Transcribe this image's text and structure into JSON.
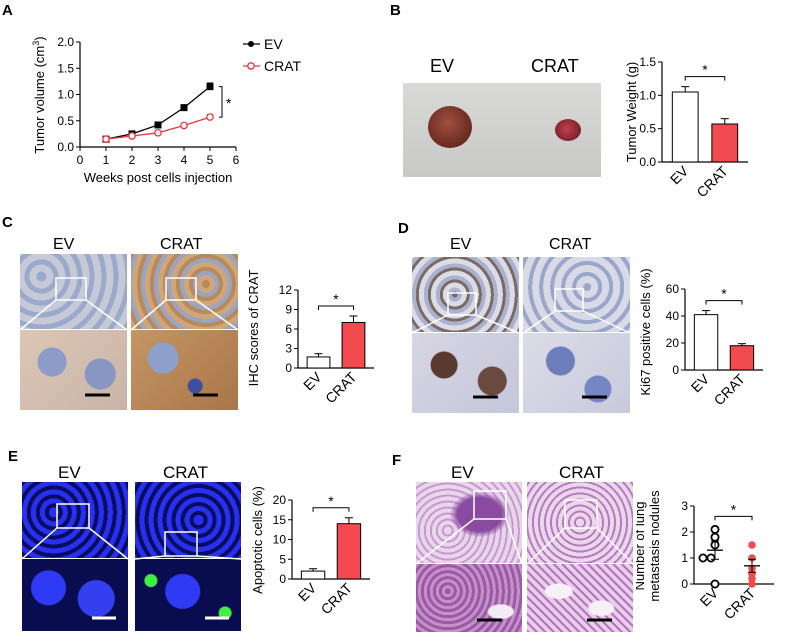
{
  "panels": {
    "A": {
      "label": "A"
    },
    "B": {
      "label": "B",
      "photo_labels": [
        "EV",
        "CRAT"
      ]
    },
    "C": {
      "label": "C",
      "image_labels": [
        "EV",
        "CRAT"
      ]
    },
    "D": {
      "label": "D",
      "image_labels": [
        "EV",
        "CRAT"
      ]
    },
    "E": {
      "label": "E",
      "image_labels": [
        "EV",
        "CRAT"
      ]
    },
    "F": {
      "label": "F",
      "image_labels": [
        "EV",
        "CRAT"
      ]
    }
  },
  "colors": {
    "ev": "#000000",
    "crat": "#e8363e",
    "crat_fill": "#f24a4e",
    "dapi": "#1d24e8",
    "tunel": "#22e022"
  },
  "chart_data": [
    {
      "id": "A",
      "type": "line",
      "xlabel": "Weeks post cells injection",
      "ylabel": "Tumor volume (cm3)",
      "ylabel_main": "Tumor volume (cm",
      "ylabel_sup": "3",
      "ylabel_end": ")",
      "xlim": [
        0,
        6
      ],
      "ylim": [
        0,
        2.0
      ],
      "xticks": [
        "0",
        "1",
        "2",
        "3",
        "4",
        "5",
        "6"
      ],
      "yticks": [
        "0.0",
        "0.5",
        "1.0",
        "1.5",
        "2.0"
      ],
      "series": [
        {
          "name": "EV",
          "x": [
            1,
            2,
            3,
            4,
            5
          ],
          "y": [
            0.15,
            0.25,
            0.42,
            0.75,
            1.15
          ],
          "err": [
            0.03,
            0.03,
            0.03,
            0.04,
            0.07
          ]
        },
        {
          "name": "CRAT",
          "x": [
            1,
            2,
            3,
            4,
            5
          ],
          "y": [
            0.15,
            0.21,
            0.27,
            0.41,
            0.57
          ],
          "err": [
            0.02,
            0.02,
            0.03,
            0.03,
            0.05
          ]
        }
      ],
      "annotation": "*",
      "legend": "top-right"
    },
    {
      "id": "B",
      "type": "bar",
      "ylabel": "Tumor Weight (g)",
      "categories": [
        "EV",
        "CRAT"
      ],
      "values": [
        1.05,
        0.57
      ],
      "err": [
        0.08,
        0.08
      ],
      "ylim": [
        0,
        1.5
      ],
      "yticks": [
        "0.0",
        "0.5",
        "1.0",
        "1.5"
      ],
      "annotation": "*"
    },
    {
      "id": "C",
      "type": "bar",
      "ylabel": "IHC scores of CRAT",
      "categories": [
        "EV",
        "CRAT"
      ],
      "values": [
        1.7,
        7.0
      ],
      "err": [
        0.5,
        1.0
      ],
      "ylim": [
        0,
        12
      ],
      "yticks": [
        "0",
        "3",
        "6",
        "9",
        "12"
      ],
      "annotation": "*"
    },
    {
      "id": "D",
      "type": "bar",
      "ylabel": "Ki67 positive cells (%)",
      "categories": [
        "EV",
        "CRAT"
      ],
      "values": [
        41,
        18
      ],
      "err": [
        3,
        1.5
      ],
      "ylim": [
        0,
        60
      ],
      "yticks": [
        "0",
        "20",
        "40",
        "60"
      ],
      "annotation": "*"
    },
    {
      "id": "E",
      "type": "bar",
      "ylabel": "Apoptotic cells (%)",
      "categories": [
        "EV",
        "CRAT"
      ],
      "values": [
        2,
        14
      ],
      "err": [
        0.6,
        1.5
      ],
      "ylim": [
        0,
        20
      ],
      "yticks": [
        "0",
        "5",
        "10",
        "15",
        "20"
      ],
      "annotation": "*"
    },
    {
      "id": "F",
      "type": "scatter",
      "ylabel_lines": [
        "Number of lung",
        "metastasis nodules"
      ],
      "ylabel": "Number of lung metastasis nodules",
      "categories": [
        "EV",
        "CRAT"
      ],
      "points": [
        [
          0,
          1,
          1,
          1.5,
          1.8,
          2.1
        ],
        [
          0,
          0.2,
          0.4,
          0.6,
          1,
          1.5
        ]
      ],
      "means": [
        1.3,
        0.7
      ],
      "sem": [
        0.35,
        0.25
      ],
      "ylim": [
        0,
        3
      ],
      "yticks": [
        "0",
        "1",
        "2",
        "3"
      ],
      "annotation": "*"
    }
  ]
}
